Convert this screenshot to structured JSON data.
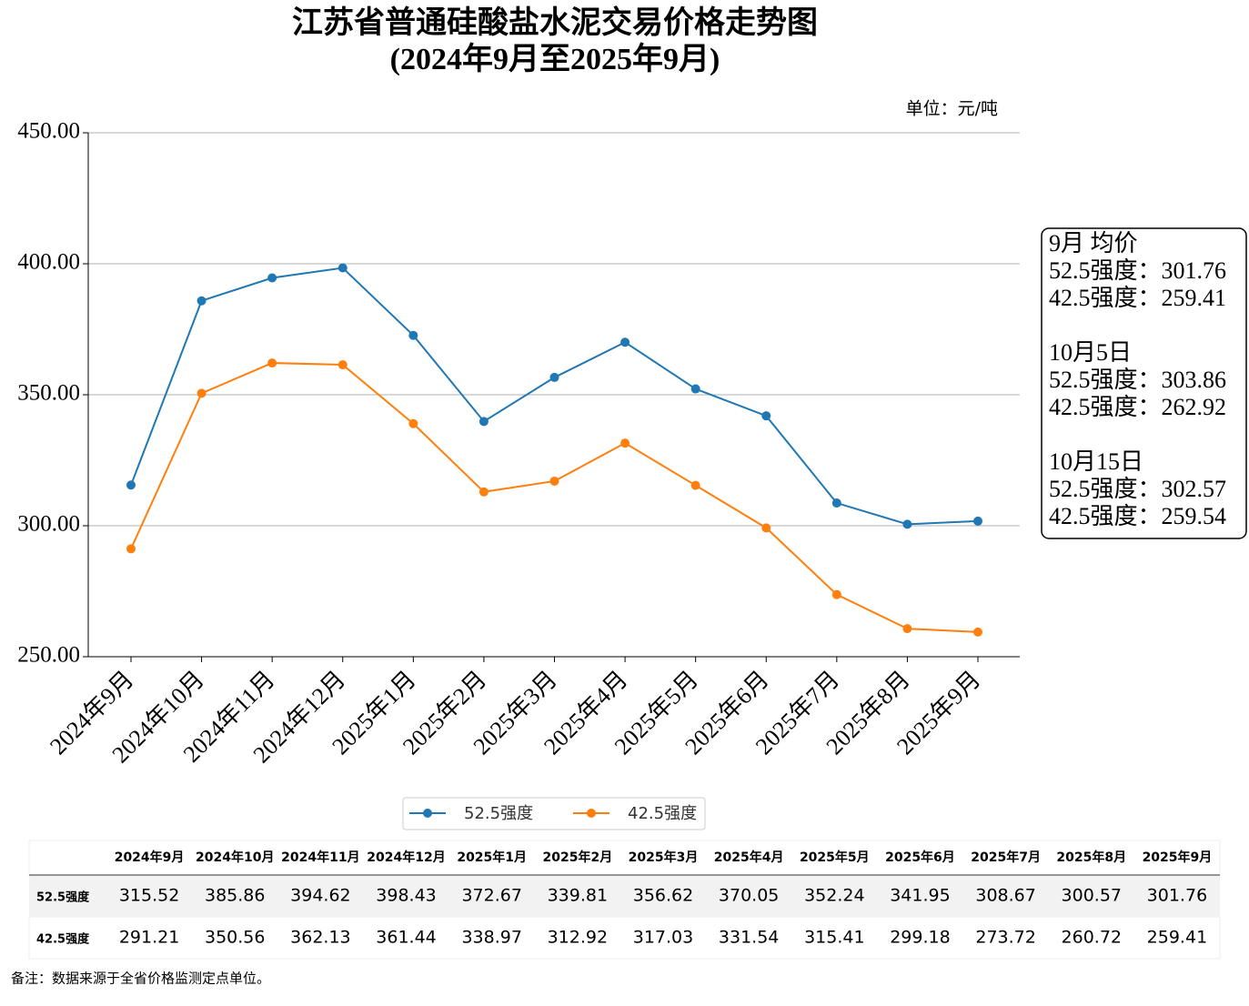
{
  "chart_data": {
    "type": "line",
    "title": "江苏省普通硅酸盐水泥交易价格走势图",
    "subtitle": "(2024年9月至2025年9月)",
    "unit": "单位：元/吨",
    "categories": [
      "2024年9月",
      "2024年10月",
      "2024年11月",
      "2024年12月",
      "2025年1月",
      "2025年2月",
      "2025年3月",
      "2025年4月",
      "2025年5月",
      "2025年6月",
      "2025年7月",
      "2025年8月",
      "2025年9月"
    ],
    "series": [
      {
        "name": "52.5强度",
        "color": "#1f77b4",
        "values": [
          315.52,
          385.86,
          394.62,
          398.43,
          372.67,
          339.81,
          356.62,
          370.05,
          352.24,
          341.95,
          308.67,
          300.57,
          301.76
        ]
      },
      {
        "name": "42.5强度",
        "color": "#ff7f0e",
        "values": [
          291.21,
          350.56,
          362.13,
          361.44,
          338.97,
          312.92,
          317.03,
          331.54,
          315.41,
          299.18,
          273.72,
          260.72,
          259.41
        ]
      }
    ],
    "ylim": [
      250,
      450
    ],
    "yticks": [
      {
        "value": 250,
        "label": "250.00"
      },
      {
        "value": 300,
        "label": "300.00"
      },
      {
        "value": 350,
        "label": "350.00"
      },
      {
        "value": 400,
        "label": "400.00"
      },
      {
        "value": 450,
        "label": "450.00"
      }
    ],
    "grid": true,
    "legend": "bottom",
    "annotation": [
      [
        "9月 均价",
        "52.5强度：301.76",
        "42.5强度：259.41"
      ],
      [
        "10月5日",
        "52.5强度：303.86",
        "42.5强度：262.92"
      ],
      [
        "10月15日",
        "52.5强度：302.57",
        "42.5强度：259.54"
      ]
    ],
    "note": "备注：数据来源于全省价格监测定点单位。"
  }
}
